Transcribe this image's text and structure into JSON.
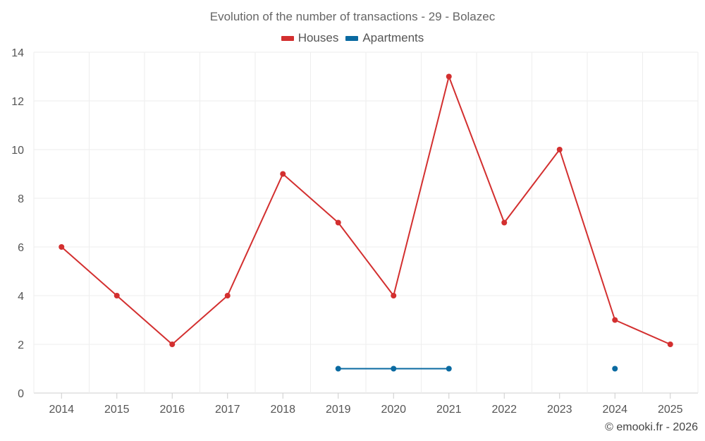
{
  "chart_data": {
    "type": "line",
    "title": "Evolution of the number of transactions - 29 - Bolazec",
    "xlabel": "",
    "ylabel": "",
    "categories": [
      "2014",
      "2015",
      "2016",
      "2017",
      "2018",
      "2019",
      "2020",
      "2021",
      "2022",
      "2023",
      "2024",
      "2025"
    ],
    "ylim": [
      0,
      14
    ],
    "yticks": [
      0,
      2,
      4,
      6,
      8,
      10,
      12,
      14
    ],
    "grid": true,
    "legend_position": "top-center",
    "series": [
      {
        "name": "Houses",
        "color": "#d32f2f",
        "values": [
          6,
          4,
          2,
          4,
          9,
          7,
          4,
          13,
          7,
          10,
          3,
          2
        ]
      },
      {
        "name": "Apartments",
        "color": "#0a6aa1",
        "values": [
          null,
          null,
          null,
          null,
          null,
          1,
          1,
          1,
          null,
          null,
          1,
          null
        ]
      }
    ]
  },
  "credits": "© emooki.fr - 2026"
}
